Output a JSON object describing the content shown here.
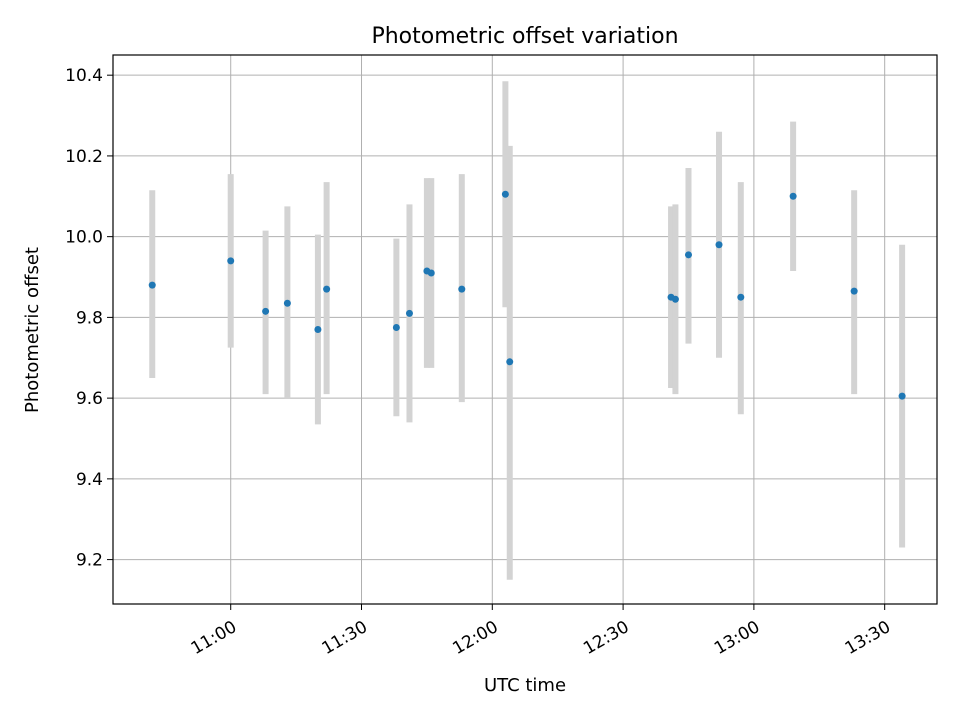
{
  "chart_data": {
    "type": "scatter",
    "title": "Photometric offset variation",
    "xlabel": "UTC time",
    "ylabel": "Photometric offset",
    "grid": true,
    "x_ticks": [
      "11:00",
      "11:30",
      "12:00",
      "12:30",
      "13:00",
      "13:30"
    ],
    "y_ticks": [
      "9.2",
      "9.4",
      "9.6",
      "9.8",
      "10.0",
      "10.2",
      "10.4"
    ],
    "xlim": [
      "10:33",
      "13:42"
    ],
    "ylim": [
      9.09,
      10.45
    ],
    "colors": {
      "point": "#1f77b4",
      "errorbar": "#d3d3d3",
      "grid": "#b0b0b0"
    },
    "points": [
      {
        "x": "10:42",
        "y": 9.88,
        "y_low": 9.65,
        "y_high": 10.115
      },
      {
        "x": "11:00",
        "y": 9.94,
        "y_low": 9.725,
        "y_high": 10.155
      },
      {
        "x": "11:08",
        "y": 9.815,
        "y_low": 9.61,
        "y_high": 10.015
      },
      {
        "x": "11:13",
        "y": 9.835,
        "y_low": 9.6,
        "y_high": 10.075
      },
      {
        "x": "11:20",
        "y": 9.77,
        "y_low": 9.535,
        "y_high": 10.005
      },
      {
        "x": "11:22",
        "y": 9.87,
        "y_low": 9.61,
        "y_high": 10.135
      },
      {
        "x": "11:38",
        "y": 9.775,
        "y_low": 9.555,
        "y_high": 9.995
      },
      {
        "x": "11:41",
        "y": 9.81,
        "y_low": 9.54,
        "y_high": 10.08
      },
      {
        "x": "11:45",
        "y": 9.915,
        "y_low": 9.675,
        "y_high": 10.145
      },
      {
        "x": "11:46",
        "y": 9.91,
        "y_low": 9.675,
        "y_high": 10.145
      },
      {
        "x": "11:53",
        "y": 9.87,
        "y_low": 9.59,
        "y_high": 10.155
      },
      {
        "x": "12:03",
        "y": 10.105,
        "y_low": 9.825,
        "y_high": 10.385
      },
      {
        "x": "12:04",
        "y": 9.69,
        "y_low": 9.15,
        "y_high": 10.225
      },
      {
        "x": "12:41",
        "y": 9.85,
        "y_low": 9.625,
        "y_high": 10.075
      },
      {
        "x": "12:42",
        "y": 9.845,
        "y_low": 9.61,
        "y_high": 10.08
      },
      {
        "x": "12:45",
        "y": 9.955,
        "y_low": 9.735,
        "y_high": 10.17
      },
      {
        "x": "12:52",
        "y": 9.98,
        "y_low": 9.7,
        "y_high": 10.26
      },
      {
        "x": "12:57",
        "y": 9.85,
        "y_low": 9.56,
        "y_high": 10.135
      },
      {
        "x": "13:09",
        "y": 10.1,
        "y_low": 9.915,
        "y_high": 10.285
      },
      {
        "x": "13:23",
        "y": 9.865,
        "y_low": 9.61,
        "y_high": 10.115
      },
      {
        "x": "13:34",
        "y": 9.605,
        "y_low": 9.23,
        "y_high": 9.98
      }
    ]
  }
}
